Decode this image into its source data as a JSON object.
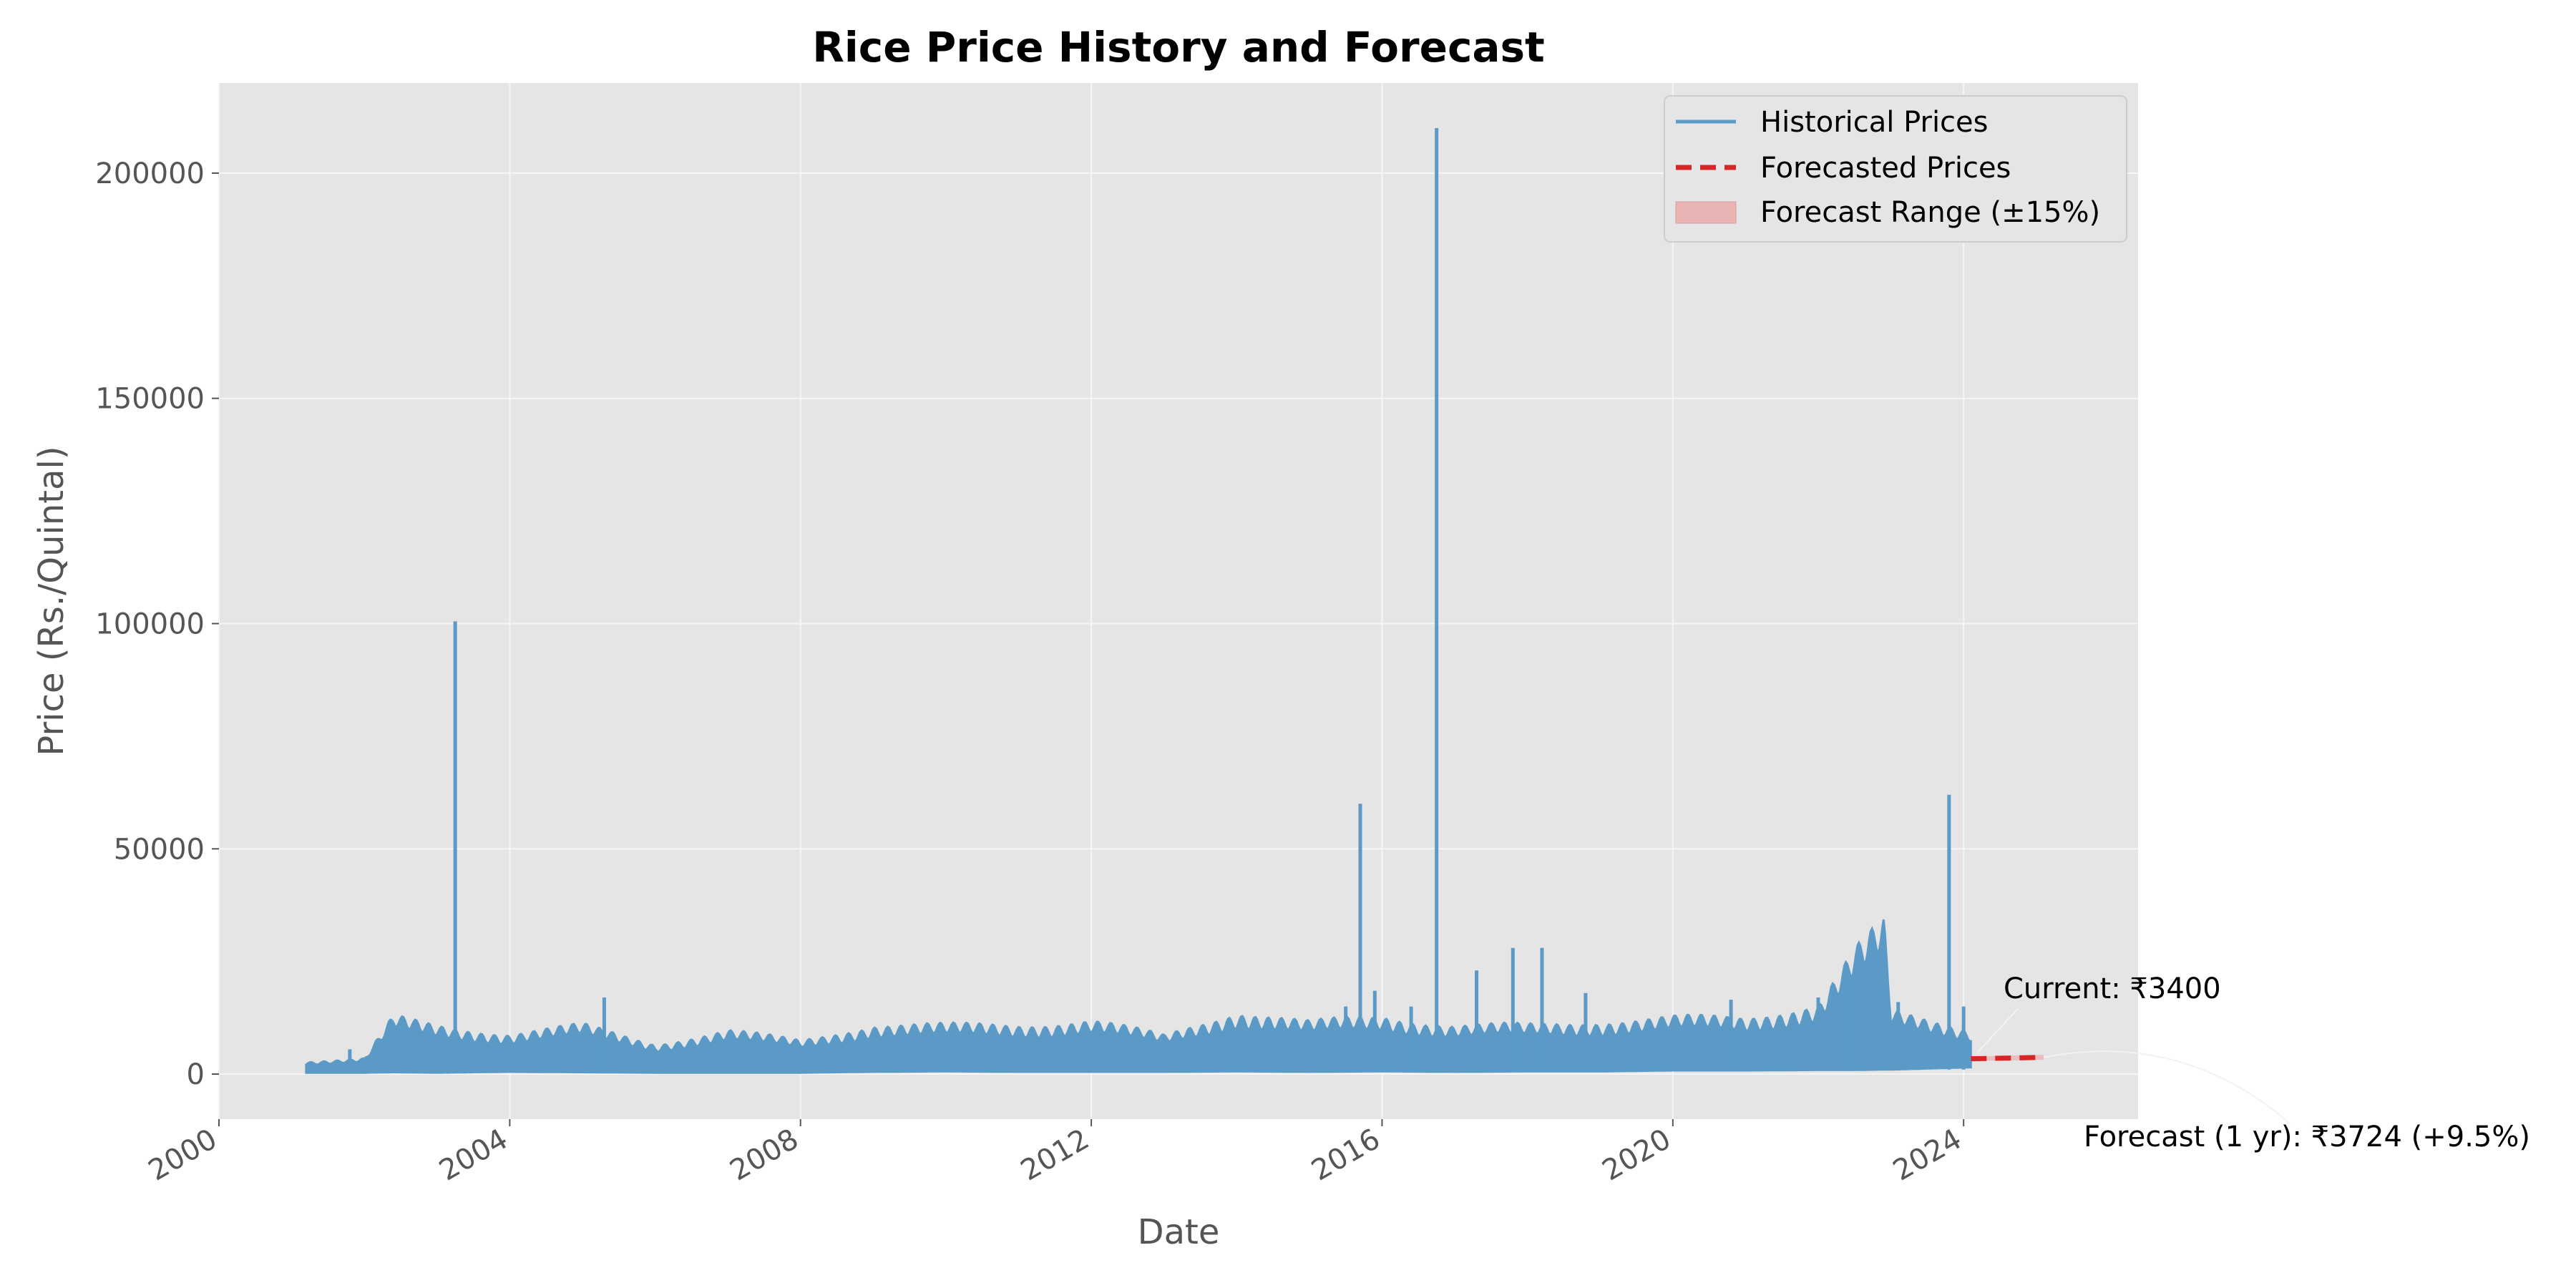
{
  "chart_data": {
    "type": "line",
    "title": "Rice Price History and Forecast",
    "xlabel": "Date",
    "ylabel": "Price (Rs./Quintal)",
    "xlim": [
      2000,
      2026.4
    ],
    "ylim": [
      -10000,
      220000
    ],
    "x_ticks": [
      2000,
      2004,
      2008,
      2012,
      2016,
      2020,
      2024
    ],
    "x_tick_labels": [
      "2000",
      "2004",
      "2008",
      "2012",
      "2016",
      "2020",
      "2024"
    ],
    "y_ticks": [
      0,
      50000,
      100000,
      150000,
      200000
    ],
    "y_tick_labels": [
      "0",
      "50000",
      "100000",
      "150000",
      "200000"
    ],
    "grid": true,
    "legend_position": "top-right",
    "colors": {
      "historical": "#5b9ac6",
      "forecast": "#d62728",
      "forecast_range": "#e8b4b4",
      "plot_bg": "#e5e5e5",
      "grid": "#f5f5f5"
    },
    "series": [
      {
        "name": "Historical Prices",
        "style": "solid",
        "x_start": 2001.2,
        "x_end": 2024.1,
        "envelope": [
          [
            2001.2,
            300,
            2500
          ],
          [
            2002.0,
            300,
            3000
          ],
          [
            2002.4,
            400,
            11000
          ],
          [
            2003.0,
            300,
            9500
          ],
          [
            2004.0,
            500,
            8000
          ],
          [
            2005.0,
            400,
            9500
          ],
          [
            2006.0,
            300,
            6000
          ],
          [
            2007.0,
            300,
            8500
          ],
          [
            2008.0,
            300,
            6500
          ],
          [
            2009.0,
            500,
            9800
          ],
          [
            2010.0,
            600,
            9500
          ],
          [
            2011.0,
            500,
            9800
          ],
          [
            2012.0,
            500,
            10500
          ],
          [
            2013.0,
            500,
            7500
          ],
          [
            2014.0,
            600,
            12500
          ],
          [
            2015.0,
            500,
            10000
          ],
          [
            2016.0,
            600,
            11500
          ],
          [
            2017.0,
            500,
            9500
          ],
          [
            2018.0,
            600,
            9500
          ],
          [
            2019.0,
            600,
            10500
          ],
          [
            2020.0,
            800,
            11000
          ],
          [
            2021.0,
            800,
            11000
          ],
          [
            2022.0,
            900,
            14000
          ],
          [
            2022.5,
            900,
            24000
          ],
          [
            2022.9,
            1000,
            29000
          ],
          [
            2023.0,
            1000,
            12000
          ],
          [
            2024.1,
            1500,
            9000
          ]
        ],
        "spikes": [
          [
            2001.8,
            5500
          ],
          [
            2002.2,
            5500
          ],
          [
            2002.9,
            10000
          ],
          [
            2003.25,
            100500
          ],
          [
            2005.3,
            17000
          ],
          [
            2015.5,
            15000
          ],
          [
            2015.7,
            60000
          ],
          [
            2015.9,
            18500
          ],
          [
            2016.4,
            15000
          ],
          [
            2016.75,
            210000
          ],
          [
            2017.3,
            23000
          ],
          [
            2017.8,
            28000
          ],
          [
            2018.2,
            28000
          ],
          [
            2018.8,
            18000
          ],
          [
            2020.8,
            16500
          ],
          [
            2022.0,
            17000
          ],
          [
            2022.4,
            22000
          ],
          [
            2023.1,
            16000
          ],
          [
            2023.8,
            62000
          ],
          [
            2024.0,
            15000
          ]
        ]
      },
      {
        "name": "Forecasted Prices",
        "style": "dashed",
        "points": [
          [
            2024.1,
            3400
          ],
          [
            2024.6,
            3550
          ],
          [
            2025.1,
            3724
          ]
        ]
      },
      {
        "name": "Forecast Range (±15%)",
        "style": "band",
        "lower_pct": -15,
        "upper_pct": 15
      }
    ],
    "annotations": [
      {
        "text": "Current: ₹3400",
        "x": 2024.1,
        "y": 3400
      },
      {
        "text": "Forecast (1 yr): ₹3724 (+9.5%)",
        "x": 2025.1,
        "y": 3724
      }
    ]
  }
}
